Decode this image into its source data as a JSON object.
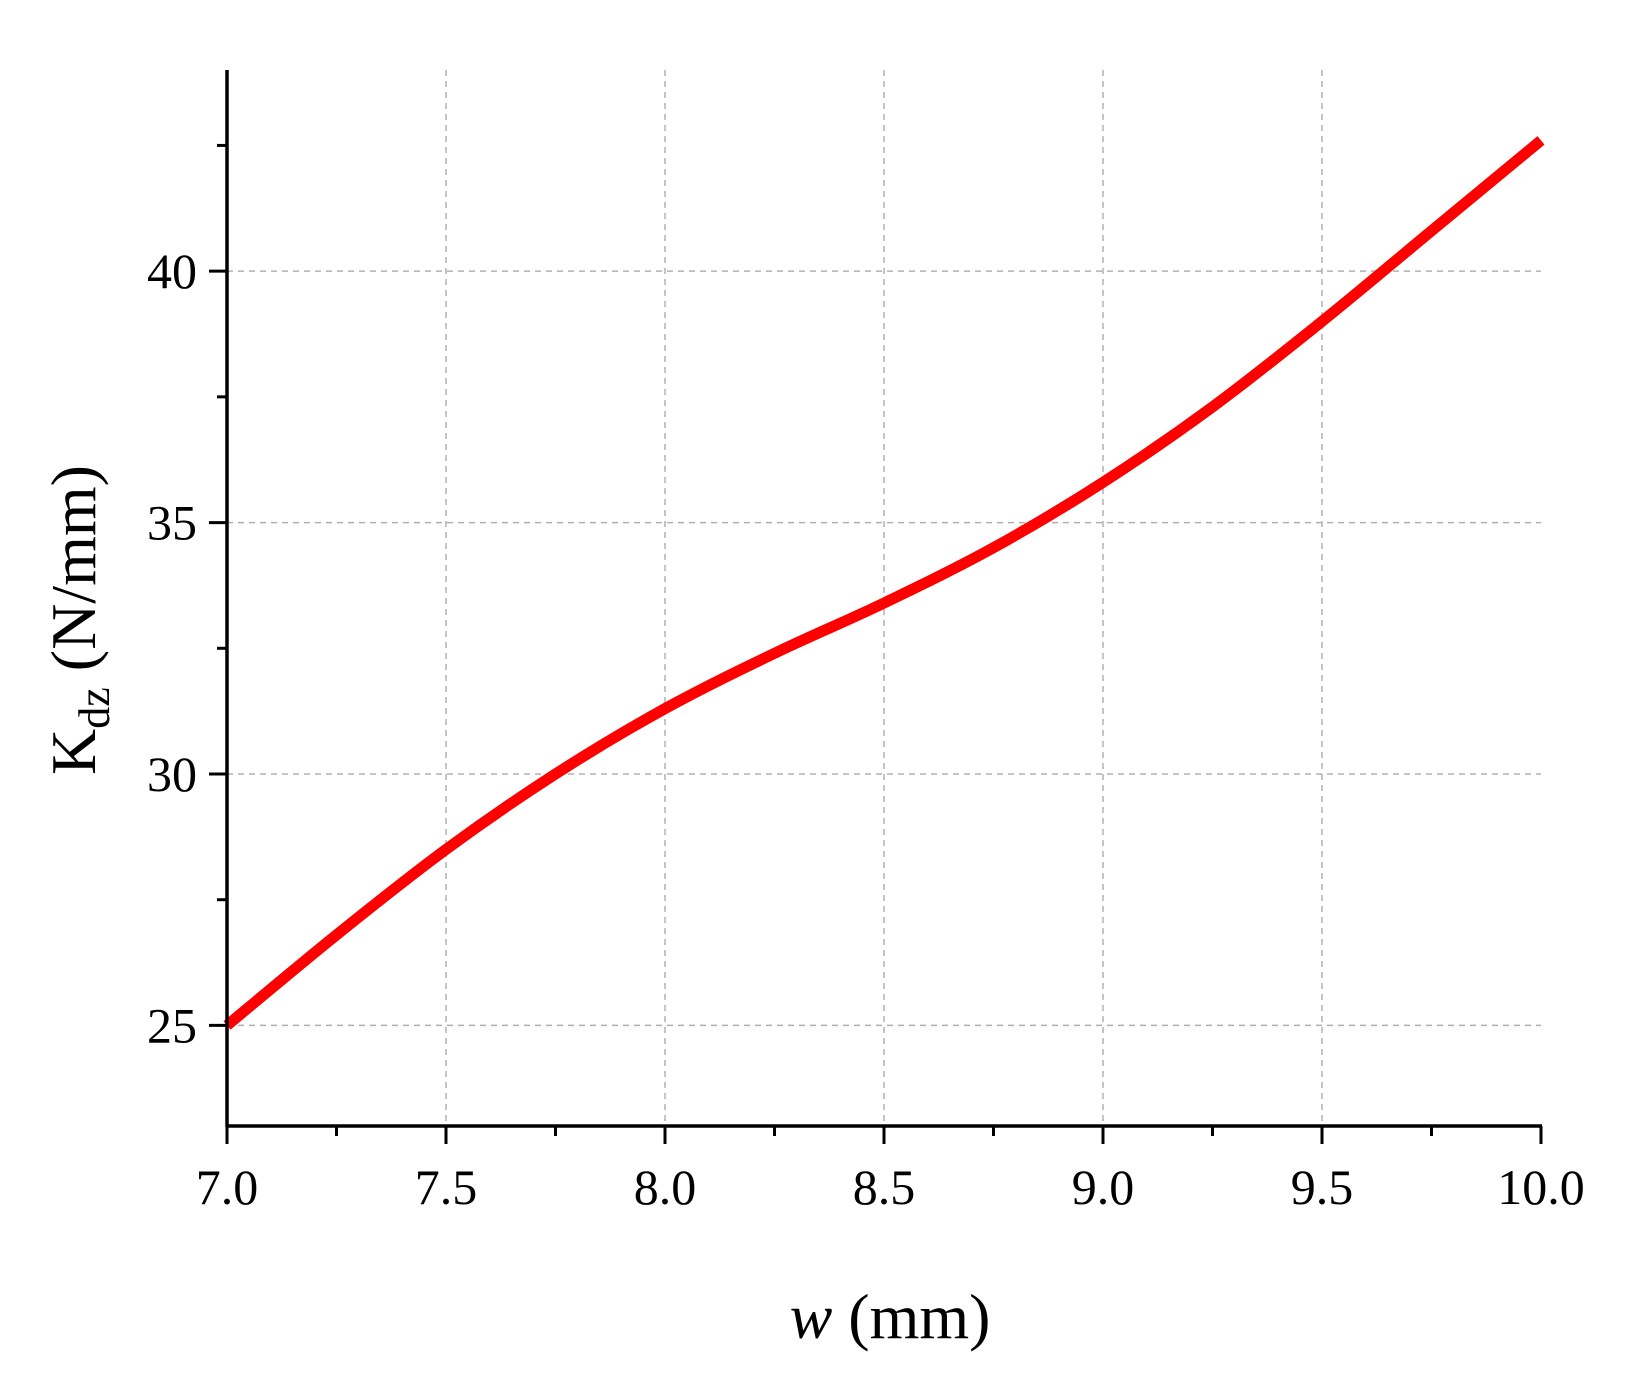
{
  "chart_data": {
    "type": "line",
    "title": "",
    "xlabel": {
      "var": "w",
      "unit": " (mm)"
    },
    "ylabel": {
      "main": "K",
      "sub": "dz",
      "unit": " (N/mm)"
    },
    "xlim": [
      7.0,
      10.0
    ],
    "ylim": [
      23.0,
      44.0
    ],
    "xticks": [
      "7.0",
      "7.5",
      "8.0",
      "8.5",
      "9.0",
      "9.5",
      "10.0"
    ],
    "yticks": [
      "25",
      "30",
      "35",
      "40"
    ],
    "grid": true,
    "series": [
      {
        "color": "#ff0000",
        "x": [
          7.0,
          7.25,
          7.5,
          7.75,
          8.0,
          8.25,
          8.5,
          8.75,
          9.0,
          9.25,
          9.5,
          9.75,
          10.0
        ],
        "y": [
          25.0,
          26.8,
          28.5,
          30.0,
          31.3,
          32.4,
          33.4,
          34.5,
          35.8,
          37.3,
          39.0,
          40.8,
          42.6
        ]
      }
    ]
  }
}
